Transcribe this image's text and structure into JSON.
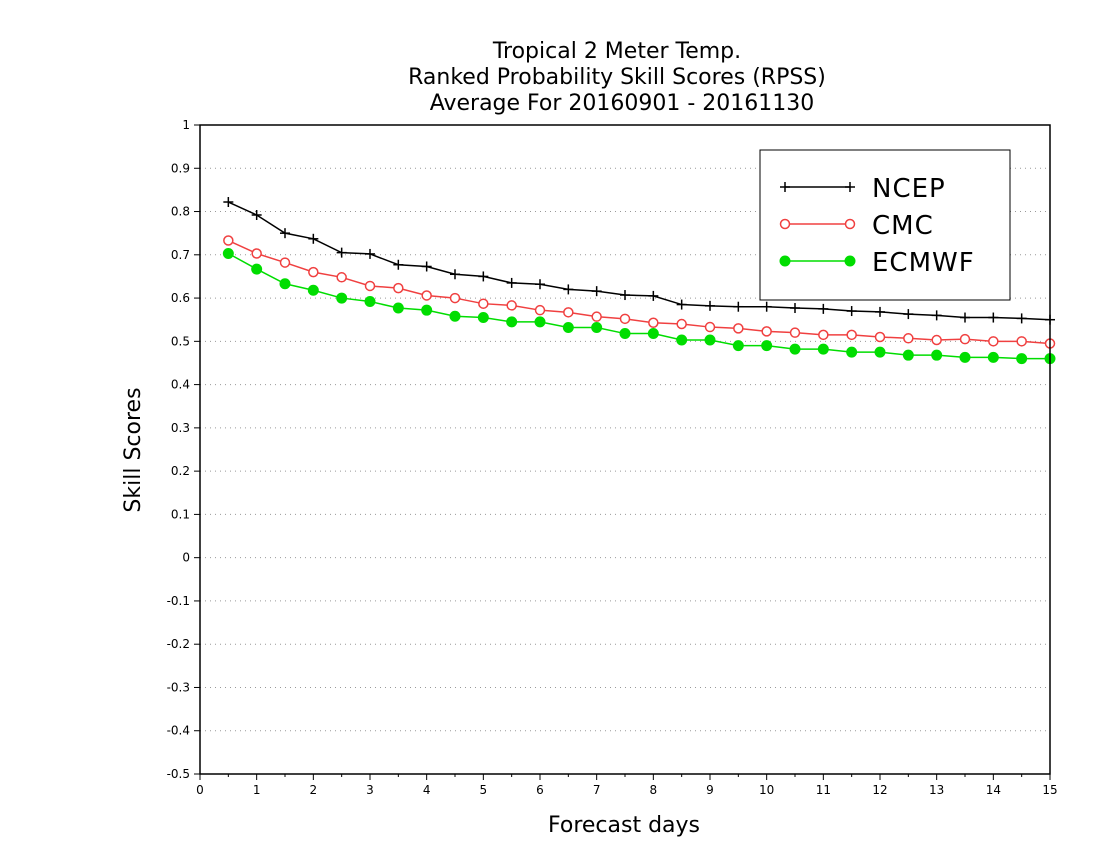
{
  "chart_data": {
    "type": "line",
    "title_lines": [
      "Tropical 2 Meter Temp.",
      "Ranked Probability Skill Scores (RPSS)",
      "Average For 20160901 - 20161130"
    ],
    "xlabel": "Forecast days",
    "ylabel": "Skill Scores",
    "xlim": [
      0,
      15
    ],
    "ylim": [
      -0.5,
      1
    ],
    "x_ticks": [
      "0",
      "1",
      "2",
      "3",
      "4",
      "5",
      "6",
      "7",
      "8",
      "9",
      "10",
      "11",
      "12",
      "13",
      "14",
      "15"
    ],
    "y_ticks": [
      "1",
      "0.9",
      "0.8",
      "0.7",
      "0.6",
      "0.5",
      "0.4",
      "0.3",
      "0.2",
      "0.1",
      "0",
      "-0.1",
      "-0.2",
      "-0.3",
      "-0.4",
      "-0.5"
    ],
    "y_tick_values": [
      1,
      0.9,
      0.8,
      0.7,
      0.6,
      0.5,
      0.4,
      0.3,
      0.2,
      0.1,
      0,
      -0.1,
      -0.2,
      -0.3,
      -0.4,
      -0.5
    ],
    "grid": "horizontal dotted",
    "legend_position": "top-right",
    "x": [
      0.5,
      1,
      1.5,
      2,
      2.5,
      3,
      3.5,
      4,
      4.5,
      5,
      5.5,
      6,
      6.5,
      7,
      7.5,
      8,
      8.5,
      9,
      9.5,
      10,
      10.5,
      11,
      11.5,
      12,
      12.5,
      13,
      13.5,
      14,
      14.5,
      15
    ],
    "series": [
      {
        "name": "NCEP",
        "color": "#000000",
        "marker": "plus",
        "values": [
          0.822,
          0.792,
          0.75,
          0.737,
          0.705,
          0.702,
          0.677,
          0.673,
          0.655,
          0.65,
          0.635,
          0.632,
          0.62,
          0.616,
          0.607,
          0.605,
          0.585,
          0.582,
          0.58,
          0.58,
          0.577,
          0.575,
          0.57,
          0.568,
          0.563,
          0.56,
          0.555,
          0.555,
          0.553,
          0.55
        ]
      },
      {
        "name": "CMC",
        "color": "#f04040",
        "marker": "open-circle",
        "values": [
          0.733,
          0.703,
          0.682,
          0.66,
          0.648,
          0.628,
          0.623,
          0.606,
          0.6,
          0.587,
          0.583,
          0.572,
          0.567,
          0.557,
          0.552,
          0.543,
          0.54,
          0.533,
          0.53,
          0.523,
          0.52,
          0.515,
          0.515,
          0.51,
          0.507,
          0.503,
          0.505,
          0.5,
          0.5,
          0.495
        ]
      },
      {
        "name": "ECMWF",
        "color": "#00dd00",
        "marker": "filled-circle",
        "values": [
          0.703,
          0.667,
          0.633,
          0.618,
          0.6,
          0.592,
          0.577,
          0.572,
          0.558,
          0.555,
          0.545,
          0.545,
          0.532,
          0.532,
          0.518,
          0.518,
          0.503,
          0.503,
          0.49,
          0.49,
          0.482,
          0.482,
          0.475,
          0.475,
          0.468,
          0.468,
          0.463,
          0.463,
          0.46,
          0.46
        ]
      }
    ]
  }
}
